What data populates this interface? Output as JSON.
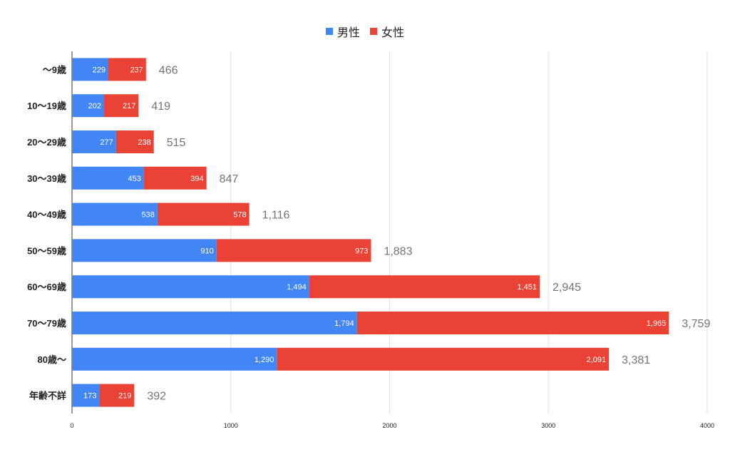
{
  "chart_data": {
    "type": "bar",
    "orientation": "horizontal",
    "stacked": true,
    "categories": [
      "〜9歳",
      "10〜19歳",
      "20〜29歳",
      "30〜39歳",
      "40〜49歳",
      "50〜59歳",
      "60〜69歳",
      "70〜79歳",
      "80歳〜",
      "年齢不詳"
    ],
    "series": [
      {
        "name": "男性",
        "color": "#4285f4",
        "values": [
          229,
          202,
          277,
          453,
          538,
          910,
          1494,
          1794,
          1290,
          173
        ],
        "labels": [
          "229",
          "202",
          "277",
          "453",
          "538",
          "910",
          "1,494",
          "1,794",
          "1,290",
          "173"
        ]
      },
      {
        "name": "女性",
        "color": "#ea4335",
        "values": [
          237,
          217,
          238,
          394,
          578,
          973,
          1451,
          1965,
          2091,
          219
        ],
        "labels": [
          "237",
          "217",
          "238",
          "394",
          "578",
          "973",
          "1,451",
          "1,965",
          "2,091",
          "219"
        ]
      }
    ],
    "totals": [
      "466",
      "419",
      "515",
      "847",
      "1,116",
      "1,883",
      "2,945",
      "3,759",
      "3,381",
      "392"
    ],
    "xlim": [
      0,
      4000
    ],
    "xticks": [
      "0",
      "1000",
      "2000",
      "3000",
      "4000"
    ],
    "grid": true,
    "legend_position": "top"
  }
}
